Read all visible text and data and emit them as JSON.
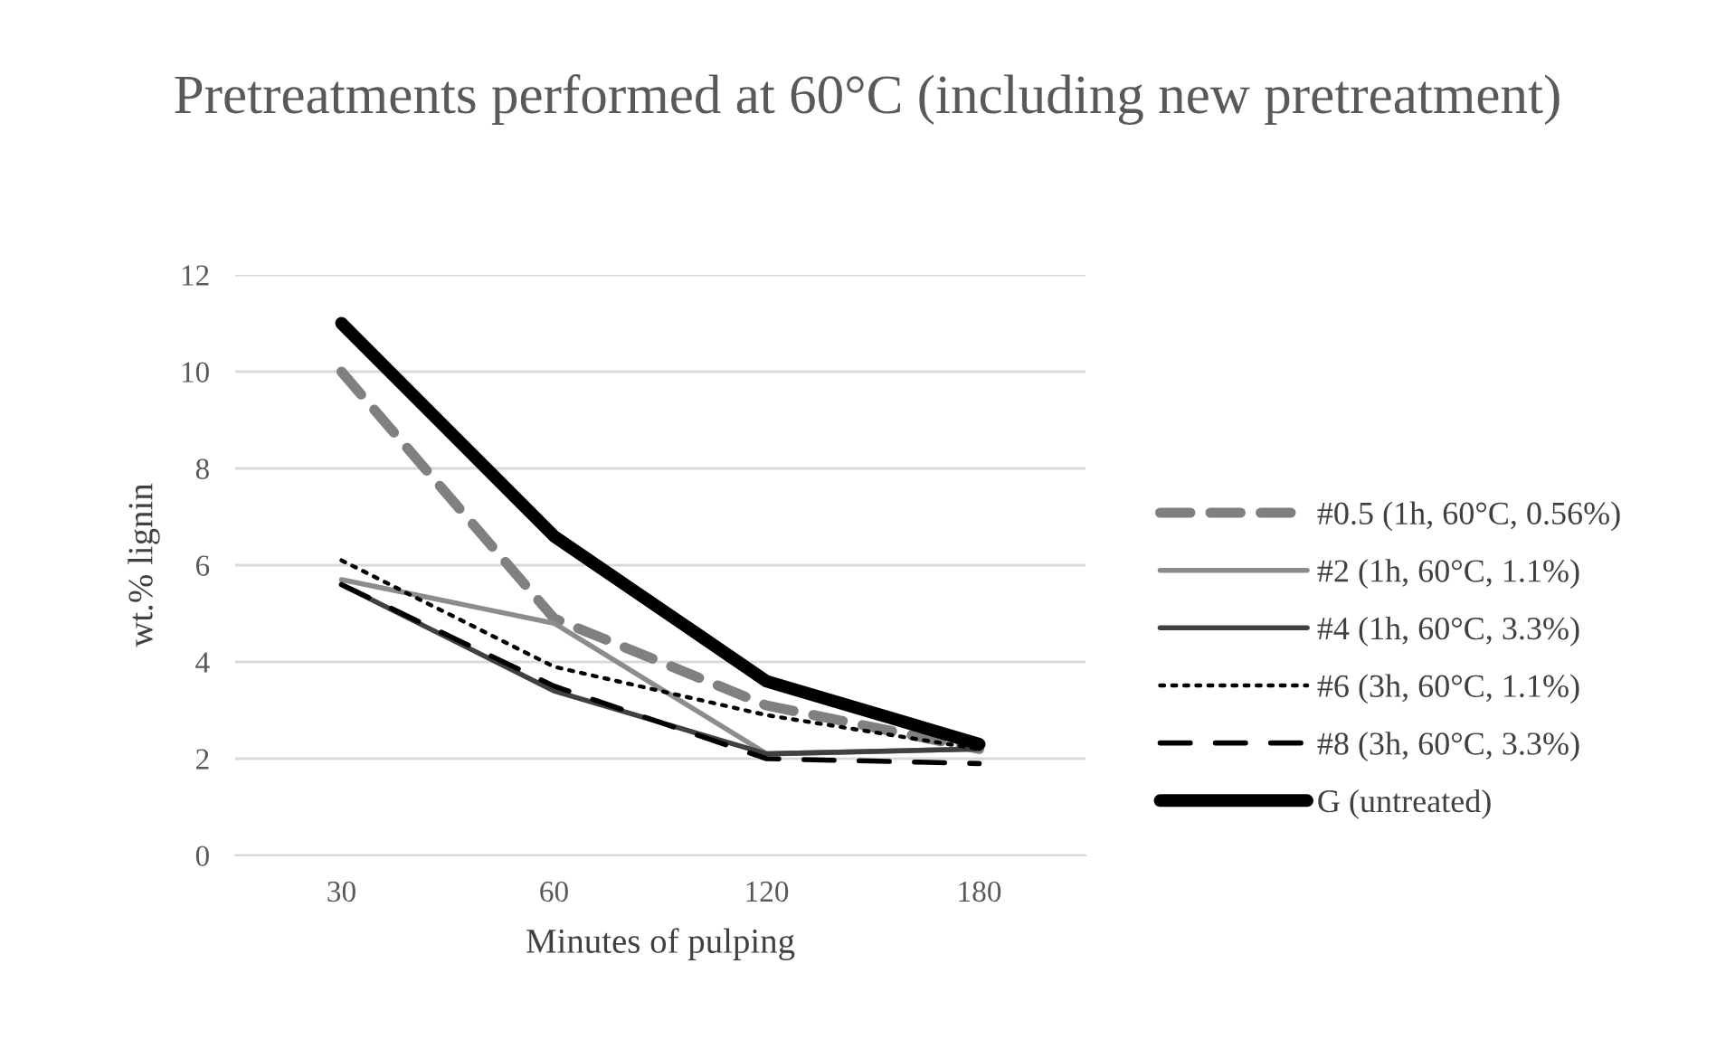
{
  "chart_data": {
    "type": "line",
    "title": "Pretreatments performed at 60°C (including new pretreatment)",
    "xlabel": "Minutes of pulping",
    "ylabel": "wt.% lignin",
    "categories": [
      "30",
      "60",
      "120",
      "180"
    ],
    "series": [
      {
        "name": "#0.5 (1h, 60°C, 0.56%)",
        "color": "#808080",
        "line_style": "dashed",
        "values": [
          10.0,
          4.9,
          3.1,
          2.2
        ]
      },
      {
        "name": "#2 (1h, 60°C, 1.1%)",
        "color": "#8c8c8c",
        "line_style": "solid",
        "values": [
          5.7,
          4.8,
          2.1,
          2.2
        ]
      },
      {
        "name": "#4 (1h, 60°C, 3.3%)",
        "color": "#404040",
        "line_style": "solid",
        "values": [
          5.6,
          3.4,
          2.1,
          2.2
        ]
      },
      {
        "name": "#6 (3h, 60°C, 1.1%)",
        "color": "#000000",
        "line_style": "dotted",
        "values": [
          6.1,
          3.9,
          2.9,
          2.2
        ]
      },
      {
        "name": "#8 (3h, 60°C, 3.3%)",
        "color": "#000000",
        "line_style": "dashed",
        "values": [
          5.6,
          3.5,
          2.0,
          1.9
        ]
      },
      {
        "name": "G (untreated)",
        "color": "#000000",
        "line_style": "solid",
        "values": [
          11.0,
          6.6,
          3.6,
          2.3
        ]
      }
    ],
    "ylim": [
      0,
      12
    ],
    "yticks": [
      0,
      2,
      4,
      6,
      8,
      10,
      12
    ],
    "grid": "y",
    "legend": "right",
    "marker": "none"
  }
}
